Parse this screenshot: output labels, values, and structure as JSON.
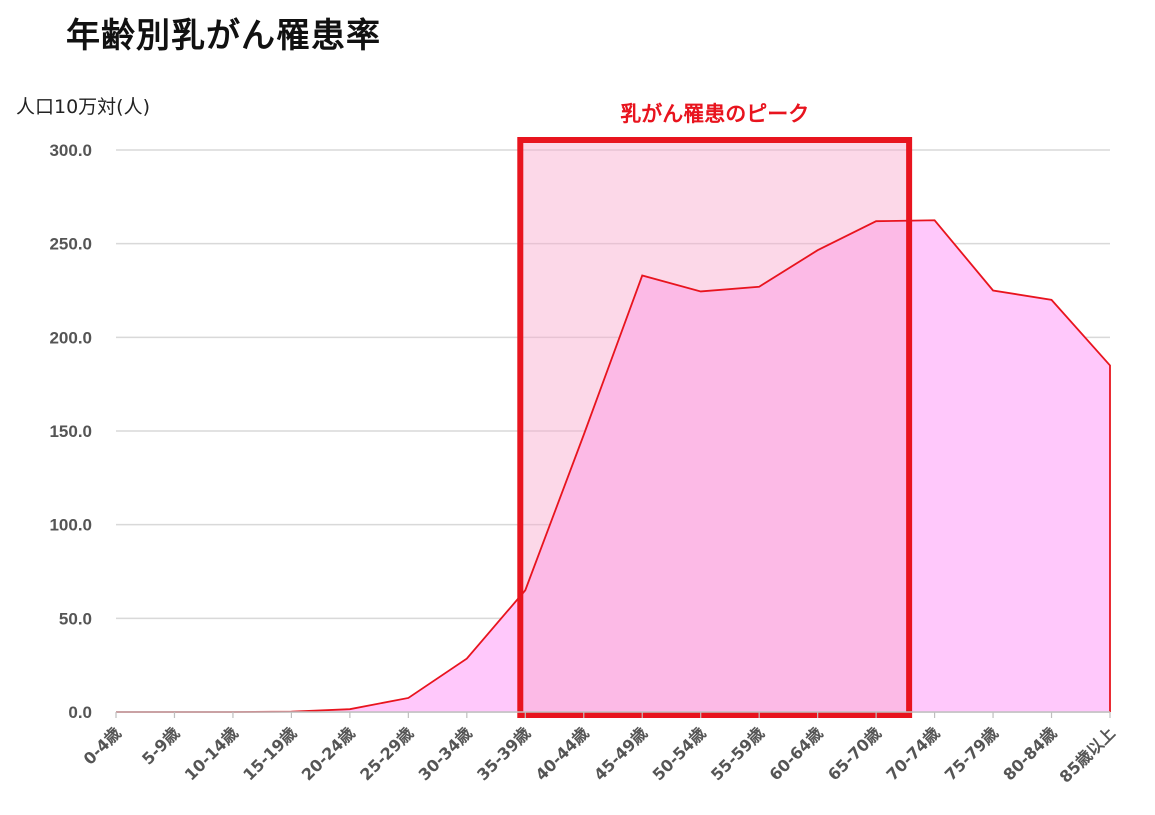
{
  "chart_data": {
    "type": "area",
    "title": "年齢別乳がん罹患率",
    "ylabel": "人口10万対(人)",
    "ylim": [
      0,
      300
    ],
    "yticks": [
      "0.0",
      "50.0",
      "100.0",
      "150.0",
      "200.0",
      "250.0",
      "300.0"
    ],
    "grid": true,
    "categories": [
      "0-4歳",
      "5-9歳",
      "10-14歳",
      "15-19歳",
      "20-24歳",
      "25-29歳",
      "30-34歳",
      "35-39歳",
      "40-44歳",
      "45-49歳",
      "50-54歳",
      "55-59歳",
      "60-64歳",
      "65-70歳",
      "70-74歳",
      "75-79歳",
      "80-84歳",
      "85歳以上"
    ],
    "values": [
      0,
      0,
      0,
      0.2,
      1.5,
      7.5,
      28.5,
      65,
      148,
      233,
      224.5,
      227,
      246.5,
      262,
      262.5,
      225,
      220,
      185
    ],
    "highlight": {
      "label": "乳がん罹患のピーク",
      "from": "35-39歳",
      "to": "65-70歳"
    },
    "colors": {
      "line": "#e8141e",
      "fill": "#ffc8fb",
      "highlight_fill": "#f8a8cb",
      "highlight_border": "#e8141e",
      "grid": "#d9d9d9"
    }
  }
}
